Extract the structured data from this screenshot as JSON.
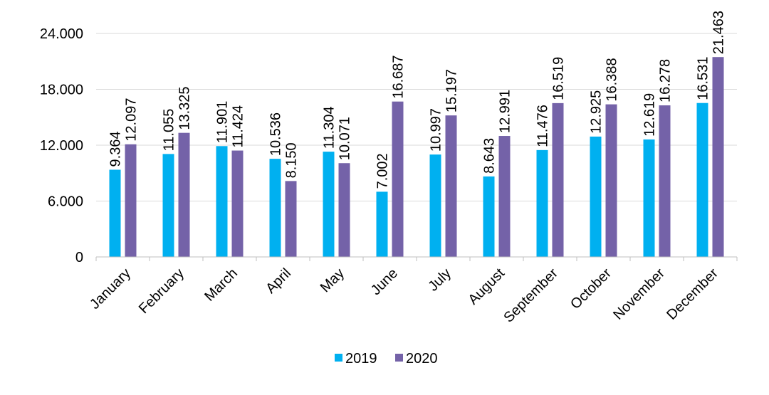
{
  "chart_data": {
    "type": "bar",
    "title": "",
    "xlabel": "",
    "ylabel": "",
    "categories": [
      "January",
      "February",
      "March",
      "April",
      "May",
      "June",
      "July",
      "August",
      "September",
      "October",
      "November",
      "December"
    ],
    "series": [
      {
        "name": "2019",
        "color": "#00B0F0",
        "values": [
          9364,
          11055,
          11901,
          10536,
          11304,
          7002,
          10997,
          8643,
          11476,
          12925,
          12619,
          16531
        ],
        "labels": [
          "9.364",
          "11.055",
          "11.901",
          "10.536",
          "11.304",
          "7.002",
          "10.997",
          "8.643",
          "11.476",
          "12.925",
          "12.619",
          "16.531"
        ]
      },
      {
        "name": "2020",
        "color": "#7462A8",
        "values": [
          12097,
          13325,
          11424,
          8150,
          10071,
          16687,
          15197,
          12991,
          16519,
          16388,
          16278,
          21463
        ],
        "labels": [
          "12.097",
          "13.325",
          "11.424",
          "8.150",
          "10.071",
          "16.687",
          "15.197",
          "12.991",
          "16.519",
          "16.388",
          "16.278",
          "21.463"
        ]
      }
    ],
    "ylim": [
      0,
      24000
    ],
    "yticks": [
      0,
      6000,
      12000,
      18000,
      24000
    ],
    "ytick_labels": [
      "0",
      "6.000",
      "12.000",
      "18.000",
      "24.000"
    ],
    "grid": true,
    "legend_position": "bottom"
  }
}
